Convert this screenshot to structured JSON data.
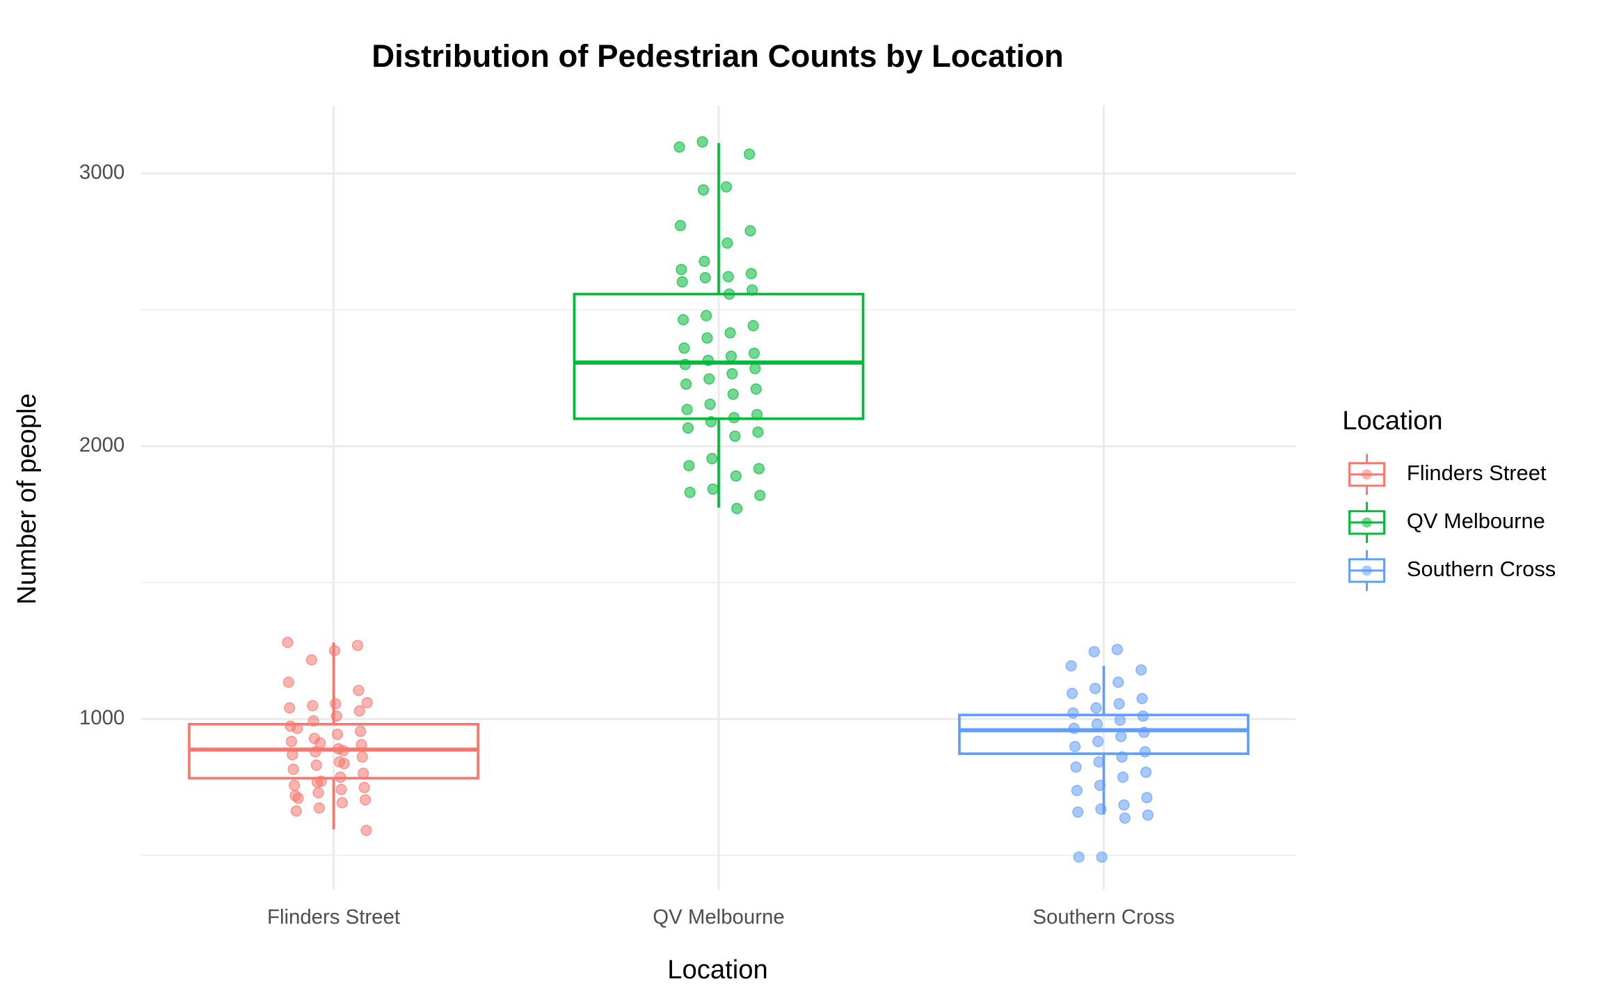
{
  "chart_data": {
    "type": "box",
    "title": "Distribution of Pedestrian Counts by Location",
    "x_label": "Location",
    "y_label": "Number of people",
    "legend_title": "Location",
    "legend_position": "right",
    "categories": [
      "Flinders Street",
      "QV Melbourne",
      "Southern Cross"
    ],
    "ylim": [
      375,
      3250
    ],
    "yticks": [
      1000,
      2000,
      3000
    ],
    "y_minor_grid": [
      500,
      1500,
      2500
    ],
    "grid": true,
    "series": [
      {
        "name": "Flinders Street",
        "color": "#f8766d",
        "box": {
          "whisker_low": 596,
          "q1": 783,
          "median": 888,
          "q3": 981,
          "whisker_high": 1281
        },
        "values": [
          1281,
          1270,
          1251,
          1217,
          1135,
          1105,
          1056,
          1049,
          1041,
          1030,
          1011,
          993,
          974,
          955,
          944,
          929,
          918,
          906,
          891,
          880,
          869,
          861,
          843,
          831,
          816,
          801,
          787,
          768,
          757,
          749,
          742,
          730,
          719,
          704,
          693,
          674,
          663,
          592,
          884,
          912,
          966,
          1060,
          837,
          772,
          710
        ]
      },
      {
        "name": "QV Melbourne",
        "color": "#00ba38",
        "box": {
          "whisker_low": 1775,
          "q1": 2101,
          "median": 2307,
          "q3": 2558,
          "whisker_high": 3112
        },
        "values": [
          3116,
          3097,
          3071,
          2951,
          2940,
          2809,
          2790,
          2745,
          2678,
          2648,
          2633,
          2622,
          2618,
          2603,
          2573,
          2558,
          2479,
          2464,
          2442,
          2416,
          2397,
          2360,
          2341,
          2330,
          2315,
          2300,
          2285,
          2266,
          2247,
          2228,
          2210,
          2191,
          2154,
          2135,
          2116,
          2105,
          2090,
          2067,
          2052,
          2037,
          1955,
          1929,
          1918,
          1891,
          1843,
          1831,
          1820,
          1772
        ]
      },
      {
        "name": "Southern Cross",
        "color": "#619cff",
        "box": {
          "whisker_low": 650,
          "q1": 873,
          "median": 959,
          "q3": 1015,
          "whisker_high": 1195
        },
        "values": [
          1255,
          1247,
          1195,
          1180,
          1135,
          1112,
          1094,
          1075,
          1056,
          1041,
          1022,
          1011,
          996,
          981,
          966,
          951,
          936,
          918,
          899,
          880,
          861,
          843,
          824,
          805,
          787,
          757,
          738,
          712,
          685,
          670,
          659,
          648,
          637,
          494,
          494
        ]
      }
    ]
  }
}
